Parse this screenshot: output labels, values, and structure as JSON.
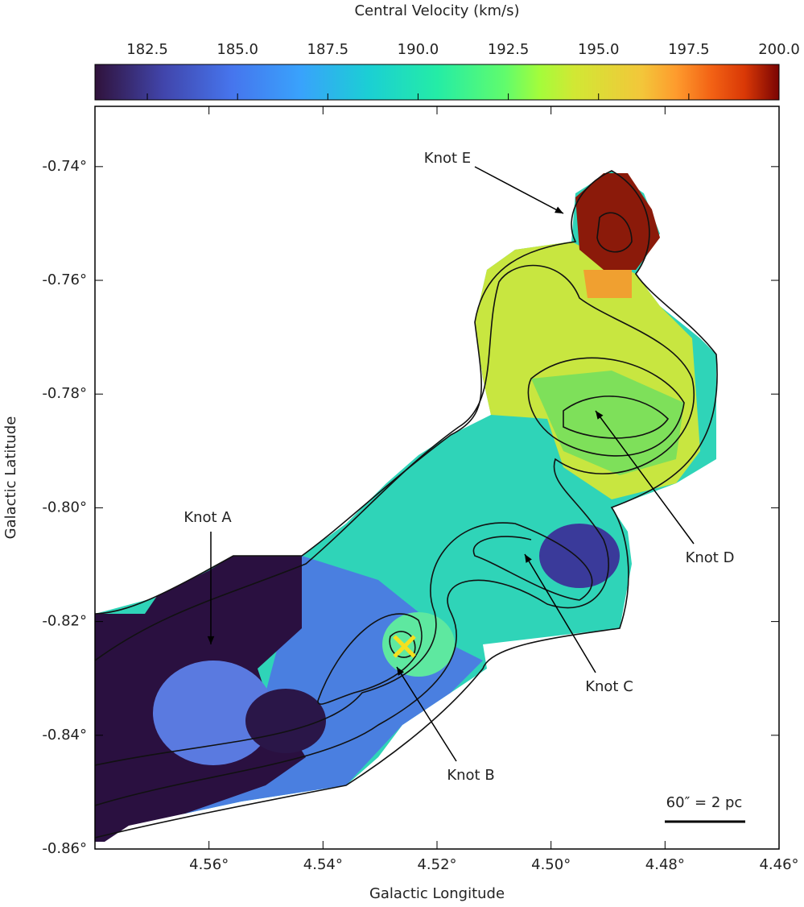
{
  "chart_data": {
    "type": "image",
    "title": "Central Velocity (km/s)",
    "x_label": "Galactic Longitude",
    "y_label": "Galactic Latitude",
    "clim": [
      181.05,
      200
    ],
    "cticks": [
      182.5,
      {
        "value": 185,
        "label": "185.0"
      },
      187.5,
      {
        "value": 190,
        "label": "190.0"
      },
      192.5,
      {
        "value": 195,
        "label": "195.0"
      },
      197.5,
      {
        "value": 200,
        "label": "200.0"
      }
    ],
    "xlim": [
      4.58,
      4.46
    ],
    "xticks": [
      {
        "value": 4.56,
        "label": "4.56°"
      },
      {
        "value": 4.54,
        "label": "4.54°"
      },
      {
        "value": 4.52,
        "label": "4.52°"
      },
      {
        "value": 4.5,
        "label": "4.50°"
      },
      {
        "value": 4.48,
        "label": "4.48°"
      },
      {
        "value": 4.46,
        "label": "4.46°"
      }
    ],
    "ylim": [
      -0.86,
      -0.7294
    ],
    "yticks": [
      {
        "value": -0.74,
        "label": "-0.74°"
      },
      {
        "value": -0.76,
        "label": "-0.76°"
      },
      {
        "value": -0.78,
        "label": "-0.78°"
      },
      {
        "value": -0.8,
        "label": "-0.80°"
      },
      {
        "value": -0.82,
        "label": "-0.82°"
      },
      {
        "value": -0.84,
        "label": "-0.84°"
      },
      {
        "value": -0.86,
        "label": "-0.86°"
      }
    ],
    "annotations": [
      "Knot E",
      "Knot A",
      "Knot B",
      "Knot C",
      "Knot D"
    ],
    "scale_bar": "60″ = 2 pc"
  }
}
